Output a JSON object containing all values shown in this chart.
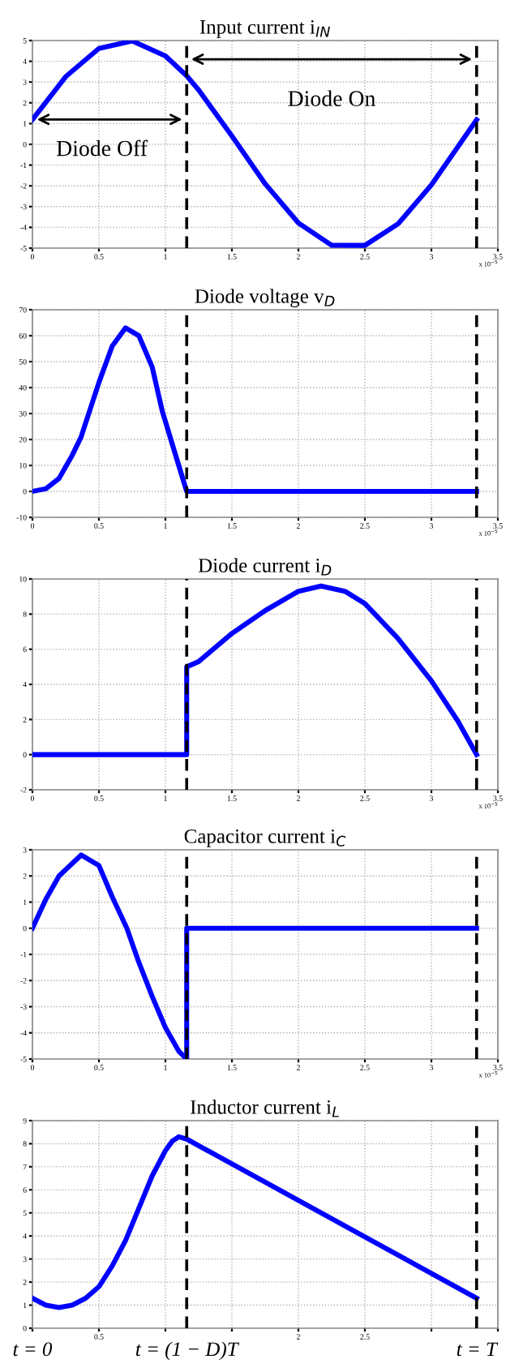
{
  "chart_data": [
    {
      "type": "line",
      "title": "Input current i$_{IN}$",
      "x": [
        0,
        0.25,
        0.5,
        0.75,
        1.0,
        1.16,
        1.25,
        1.5,
        1.75,
        2.0,
        2.25,
        2.5,
        2.75,
        3.0,
        3.25,
        3.34
      ],
      "series": [
        {
          "color": "#0000ff",
          "values": [
            1.19,
            3.26,
            4.62,
            4.98,
            4.26,
            3.3,
            2.62,
            0.4,
            -1.9,
            -3.79,
            -4.86,
            -4.87,
            -3.83,
            -1.95,
            0.35,
            1.18
          ]
        }
      ],
      "xlim": [
        0,
        3.5
      ],
      "xticks": [
        0,
        0.5,
        1,
        1.5,
        2,
        2.5,
        3,
        3.5
      ],
      "ylim": [
        -5,
        5
      ],
      "yticks": [
        -5,
        -4,
        -3,
        -2,
        -1,
        0,
        1,
        2,
        3,
        4,
        5
      ],
      "grid": true,
      "marker": "none",
      "line_style": "solid",
      "ref_lines": [
        {
          "axis": "x",
          "value": 1.16,
          "color": "#000000",
          "line_style": "dashed"
        },
        {
          "axis": "x",
          "value": 3.34,
          "color": "#000000",
          "line_style": "dashed"
        }
      ],
      "annotations": [
        "Diode Off",
        "Diode On",
        "x 10$^{−5}$"
      ]
    },
    {
      "type": "line",
      "title": "Diode voltage v$_{D}$",
      "x": [
        0,
        0.1,
        0.2,
        0.3,
        0.366,
        0.5,
        0.6,
        0.7,
        0.8,
        0.9,
        0.976,
        1.1,
        1.16,
        3.34
      ],
      "series": [
        {
          "color": "#0000ff",
          "values": [
            0,
            1,
            5,
            14,
            21,
            42,
            56,
            63,
            60,
            48,
            31,
            10,
            0,
            0
          ]
        }
      ],
      "xlim": [
        0,
        3.5
      ],
      "xticks": [
        0,
        0.5,
        1,
        1.5,
        2,
        2.5,
        3,
        3.5
      ],
      "ylim": [
        -10,
        70
      ],
      "yticks": [
        -10,
        0,
        10,
        20,
        30,
        40,
        50,
        60,
        70
      ],
      "grid": true,
      "marker": "none",
      "line_style": "solid",
      "ref_lines": [
        {
          "axis": "x",
          "value": 1.16,
          "color": "#000000",
          "line_style": "dashed"
        },
        {
          "axis": "x",
          "value": 3.34,
          "color": "#000000",
          "line_style": "dashed"
        }
      ],
      "annotations": [
        "x 10$^{−5}$"
      ]
    },
    {
      "type": "line",
      "title": "Diode current i$_{D}$",
      "x": [
        0,
        1.16,
        1.16,
        1.25,
        1.5,
        1.75,
        2.0,
        2.17,
        2.35,
        2.5,
        2.75,
        3.0,
        3.2,
        3.34
      ],
      "series": [
        {
          "color": "#0000ff",
          "values": [
            0,
            0,
            5.0,
            5.3,
            6.9,
            8.2,
            9.3,
            9.6,
            9.3,
            8.6,
            6.6,
            4.2,
            1.9,
            0
          ]
        }
      ],
      "xlim": [
        0,
        3.5
      ],
      "xticks": [
        0,
        0.5,
        1,
        1.5,
        2,
        2.5,
        3,
        3.5
      ],
      "ylim": [
        -2,
        10
      ],
      "yticks": [
        -2,
        0,
        2,
        4,
        6,
        8,
        10
      ],
      "grid": true,
      "marker": "none",
      "line_style": "solid",
      "ref_lines": [
        {
          "axis": "x",
          "value": 1.16,
          "color": "#000000",
          "line_style": "dashed"
        },
        {
          "axis": "x",
          "value": 3.34,
          "color": "#000000",
          "line_style": "dashed"
        }
      ],
      "annotations": [
        "x 10$^{−5}$"
      ]
    },
    {
      "type": "line",
      "title": "Capacitor current i$_{C}$",
      "x": [
        0,
        0.1,
        0.2,
        0.366,
        0.5,
        0.6,
        0.71,
        0.8,
        0.9,
        1.0,
        1.1,
        1.16,
        1.16,
        3.34
      ],
      "series": [
        {
          "color": "#0000ff",
          "values": [
            0,
            1.1,
            2.0,
            2.8,
            2.4,
            1.2,
            0,
            -1.3,
            -2.6,
            -3.8,
            -4.7,
            -5,
            0,
            0
          ]
        }
      ],
      "xlim": [
        0,
        3.5
      ],
      "xticks": [
        0,
        0.5,
        1,
        1.5,
        2,
        2.5,
        3,
        3.5
      ],
      "ylim": [
        -5,
        3
      ],
      "yticks": [
        -5,
        -4,
        -3,
        -2,
        -1,
        0,
        1,
        2,
        3
      ],
      "grid": true,
      "marker": "none",
      "line_style": "solid",
      "ref_lines": [
        {
          "axis": "x",
          "value": 1.16,
          "color": "#000000",
          "line_style": "dashed"
        },
        {
          "axis": "x",
          "value": 3.34,
          "color": "#000000",
          "line_style": "dashed"
        }
      ],
      "annotations": [
        "x 10$^{−5}$"
      ]
    },
    {
      "type": "line",
      "title": "Inductor current i$_{L}$",
      "x": [
        0,
        0.1,
        0.2,
        0.3,
        0.4,
        0.5,
        0.6,
        0.7,
        0.8,
        0.9,
        1.0,
        1.05,
        1.1,
        1.16,
        3.34
      ],
      "series": [
        {
          "color": "#0000ff",
          "values": [
            1.3,
            1.0,
            0.9,
            1.0,
            1.3,
            1.8,
            2.7,
            3.8,
            5.2,
            6.6,
            7.7,
            8.1,
            8.3,
            8.2,
            1.3
          ]
        }
      ],
      "xlim": [
        0,
        3.5
      ],
      "xticks": [
        {
          "value": 0,
          "label": null
        },
        0.5,
        {
          "value": 1,
          "label": null
        },
        {
          "value": 1.5,
          "label": null
        },
        2,
        2.5,
        {
          "value": 3,
          "label": null
        },
        {
          "value": 3.5,
          "label": null
        }
      ],
      "ylim": [
        0,
        9
      ],
      "yticks": [
        0,
        1,
        2,
        3,
        4,
        5,
        6,
        7,
        8,
        9
      ],
      "grid": true,
      "marker": "none",
      "line_style": "solid",
      "ref_lines": [
        {
          "axis": "x",
          "value": 1.16,
          "color": "#000000",
          "line_style": "dashed"
        },
        {
          "axis": "x",
          "value": 3.34,
          "color": "#000000",
          "line_style": "dashed"
        }
      ],
      "annotations": [
        "t = 0",
        "t = (1 − D)T",
        "t = T"
      ]
    }
  ]
}
